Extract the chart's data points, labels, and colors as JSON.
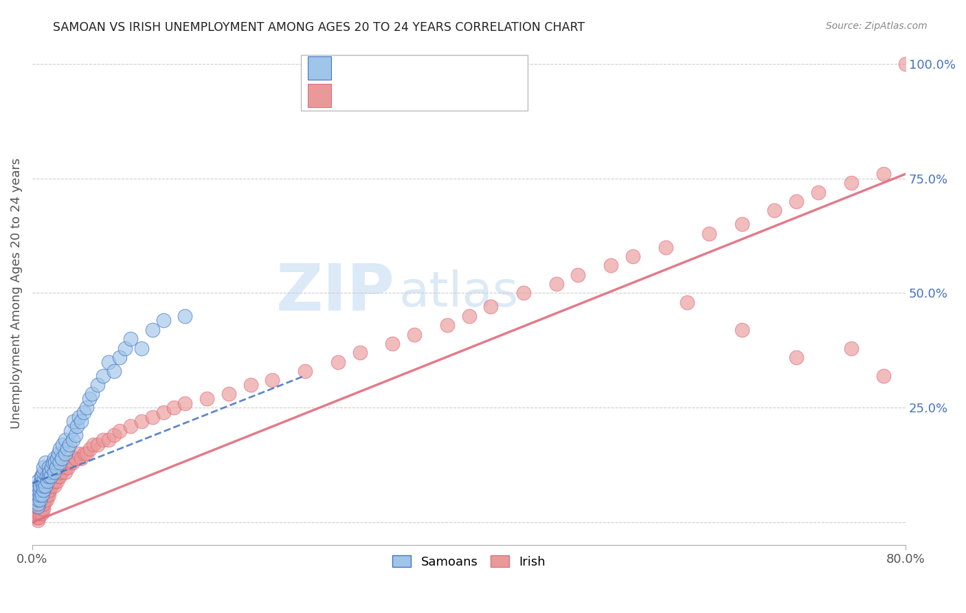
{
  "title": "SAMOAN VS IRISH UNEMPLOYMENT AMONG AGES 20 TO 24 YEARS CORRELATION CHART",
  "source": "Source: ZipAtlas.com",
  "ylabel_label": "Unemployment Among Ages 20 to 24 years",
  "xlim": [
    0.0,
    0.8
  ],
  "ylim": [
    -0.05,
    1.05
  ],
  "legend_blue_label": "Samoans",
  "legend_pink_label": "Irish",
  "blue_color": "#9fc5e8",
  "pink_color": "#ea9999",
  "blue_line_color": "#4472c4",
  "pink_line_color": "#e06c7e",
  "watermark_zip": "ZIP",
  "watermark_atlas": "atlas",
  "watermark_color": "#dce9f7",
  "samoans_x": [
    0.005,
    0.005,
    0.005,
    0.005,
    0.005,
    0.005,
    0.005,
    0.007,
    0.007,
    0.007,
    0.007,
    0.008,
    0.008,
    0.009,
    0.009,
    0.01,
    0.01,
    0.01,
    0.01,
    0.01,
    0.012,
    0.012,
    0.013,
    0.014,
    0.015,
    0.015,
    0.016,
    0.017,
    0.018,
    0.019,
    0.02,
    0.02,
    0.021,
    0.022,
    0.023,
    0.024,
    0.025,
    0.025,
    0.027,
    0.028,
    0.03,
    0.03,
    0.032,
    0.034,
    0.035,
    0.037,
    0.038,
    0.04,
    0.041,
    0.043,
    0.045,
    0.047,
    0.05,
    0.052,
    0.055,
    0.06,
    0.065,
    0.07,
    0.075,
    0.08,
    0.085,
    0.09,
    0.1,
    0.11,
    0.12,
    0.14
  ],
  "samoans_y": [
    0.035,
    0.04,
    0.05,
    0.06,
    0.07,
    0.08,
    0.09,
    0.05,
    0.06,
    0.07,
    0.08,
    0.09,
    0.1,
    0.06,
    0.1,
    0.07,
    0.08,
    0.09,
    0.11,
    0.12,
    0.08,
    0.13,
    0.1,
    0.09,
    0.1,
    0.12,
    0.11,
    0.1,
    0.12,
    0.13,
    0.11,
    0.14,
    0.13,
    0.12,
    0.14,
    0.15,
    0.13,
    0.16,
    0.14,
    0.17,
    0.15,
    0.18,
    0.16,
    0.17,
    0.2,
    0.18,
    0.22,
    0.19,
    0.21,
    0.23,
    0.22,
    0.24,
    0.25,
    0.27,
    0.28,
    0.3,
    0.32,
    0.35,
    0.33,
    0.36,
    0.38,
    0.4,
    0.38,
    0.42,
    0.44,
    0.45
  ],
  "irish_x": [
    0.003,
    0.004,
    0.004,
    0.005,
    0.005,
    0.005,
    0.005,
    0.005,
    0.005,
    0.005,
    0.006,
    0.006,
    0.006,
    0.006,
    0.006,
    0.007,
    0.007,
    0.007,
    0.007,
    0.008,
    0.008,
    0.008,
    0.009,
    0.009,
    0.009,
    0.009,
    0.01,
    0.01,
    0.01,
    0.01,
    0.01,
    0.01,
    0.011,
    0.011,
    0.012,
    0.012,
    0.013,
    0.013,
    0.014,
    0.014,
    0.015,
    0.015,
    0.016,
    0.017,
    0.018,
    0.019,
    0.02,
    0.02,
    0.021,
    0.022,
    0.023,
    0.024,
    0.025,
    0.026,
    0.027,
    0.028,
    0.03,
    0.031,
    0.033,
    0.035,
    0.037,
    0.039,
    0.04,
    0.042,
    0.045,
    0.048,
    0.05,
    0.053,
    0.056,
    0.06,
    0.065,
    0.07,
    0.075,
    0.08,
    0.09,
    0.1,
    0.11,
    0.12,
    0.13,
    0.14,
    0.16,
    0.18,
    0.2,
    0.22,
    0.25,
    0.28,
    0.3,
    0.33,
    0.35,
    0.38,
    0.4,
    0.42,
    0.45,
    0.48,
    0.5,
    0.53,
    0.55,
    0.58,
    0.62,
    0.65,
    0.68,
    0.7,
    0.72,
    0.75,
    0.78,
    0.6,
    0.65,
    0.7,
    0.75,
    0.78,
    0.8
  ],
  "irish_y": [
    0.02,
    0.01,
    0.02,
    0.005,
    0.01,
    0.015,
    0.02,
    0.025,
    0.03,
    0.035,
    0.01,
    0.02,
    0.03,
    0.04,
    0.05,
    0.02,
    0.03,
    0.04,
    0.05,
    0.03,
    0.04,
    0.05,
    0.02,
    0.03,
    0.04,
    0.05,
    0.03,
    0.04,
    0.05,
    0.06,
    0.07,
    0.08,
    0.04,
    0.06,
    0.05,
    0.07,
    0.05,
    0.06,
    0.06,
    0.07,
    0.06,
    0.07,
    0.07,
    0.08,
    0.08,
    0.09,
    0.08,
    0.09,
    0.09,
    0.1,
    0.09,
    0.1,
    0.1,
    0.11,
    0.11,
    0.12,
    0.11,
    0.12,
    0.12,
    0.13,
    0.13,
    0.14,
    0.14,
    0.15,
    0.14,
    0.15,
    0.15,
    0.16,
    0.17,
    0.17,
    0.18,
    0.18,
    0.19,
    0.2,
    0.21,
    0.22,
    0.23,
    0.24,
    0.25,
    0.26,
    0.27,
    0.28,
    0.3,
    0.31,
    0.33,
    0.35,
    0.37,
    0.39,
    0.41,
    0.43,
    0.45,
    0.47,
    0.5,
    0.52,
    0.54,
    0.56,
    0.58,
    0.6,
    0.63,
    0.65,
    0.68,
    0.7,
    0.72,
    0.74,
    0.76,
    0.48,
    0.42,
    0.36,
    0.38,
    0.32,
    1.0
  ],
  "blue_trend_x": [
    0.0,
    0.25
  ],
  "blue_trend_y": [
    0.085,
    0.32
  ],
  "pink_trend_x": [
    0.0,
    0.8
  ],
  "pink_trend_y": [
    0.0,
    0.76
  ],
  "grid_vals": [
    0.0,
    0.25,
    0.5,
    0.75,
    1.0
  ],
  "right_yticklabels": [
    "",
    "25.0%",
    "50.0%",
    "75.0%",
    "100.0%"
  ],
  "xtick_labels": [
    "0.0%",
    "80.0%"
  ],
  "xtick_positions": [
    0.0,
    0.8
  ]
}
